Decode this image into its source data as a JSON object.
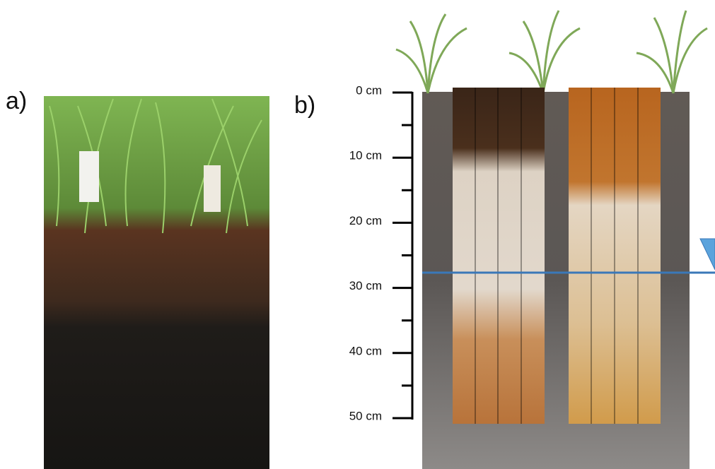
{
  "panels": [
    {
      "label": "a)"
    },
    {
      "label": "b)"
    }
  ],
  "depth_scale": {
    "ticks": [
      "0 cm",
      "10 cm",
      "20 cm",
      "30 cm",
      "40 cm",
      "50 cm"
    ]
  }
}
